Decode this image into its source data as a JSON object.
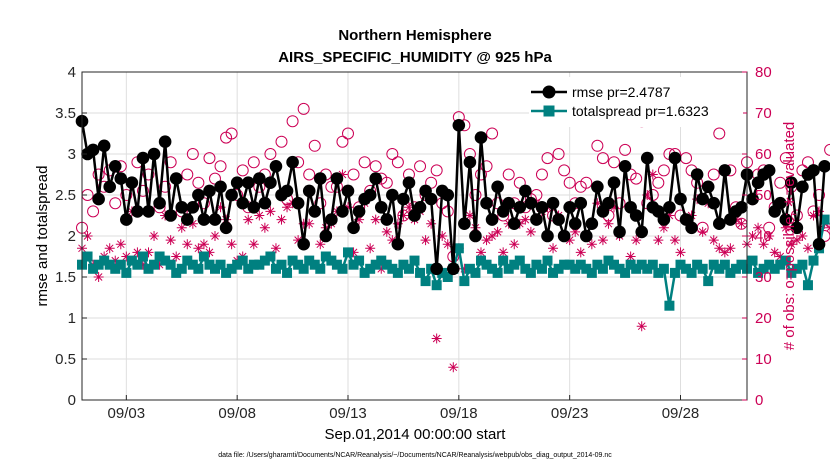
{
  "chart_data": {
    "type": "line",
    "title": "Northern Hemisphere",
    "subtitle": "AIRS_SPECIFIC_HUMIDITY @ 925 hPa",
    "xlabel": "Sep.01,2014 00:00:00 start",
    "ylabel": "rmse and totalspread",
    "y2label": "# of obs: o=possible; ∗=evaluated",
    "footnote": "data file: /Users/gharamti/Documents/NCAR/Reanalysis/~/Documents/NCAR/Reanalysis/webpub/obs_diag_output_2014-09.nc",
    "xlim": [
      1,
      31
    ],
    "ylim": [
      0,
      4
    ],
    "y2lim": [
      0,
      80
    ],
    "x_ticks": [
      3,
      8,
      13,
      18,
      23,
      28
    ],
    "x_tick_labels": [
      "09/03",
      "09/08",
      "09/13",
      "09/18",
      "09/23",
      "09/28"
    ],
    "y_ticks": [
      "0",
      "0.5",
      "1",
      "1.5",
      "2",
      "2.5",
      "3",
      "3.5",
      "4"
    ],
    "y2_ticks": [
      "0",
      "10",
      "20",
      "30",
      "40",
      "50",
      "60",
      "70",
      "80"
    ],
    "grid": true,
    "legend_position": "top-right",
    "legend": [
      {
        "name": "rmse pr=2.4787",
        "color": "#000000",
        "marker": "circle"
      },
      {
        "name": "totalspread pr=1.6323",
        "color": "#008080",
        "marker": "square"
      }
    ],
    "colors": {
      "rmse": "#000000",
      "spread": "#008080",
      "obs": "#cc0055"
    },
    "x_start": 1.0,
    "x_step": 0.25,
    "series": [
      {
        "name": "rmse pr=2.4787",
        "axis": "left",
        "values": [
          3.4,
          3.0,
          3.05,
          2.45,
          3.1,
          2.6,
          2.85,
          2.7,
          2.2,
          2.65,
          2.3,
          2.95,
          2.3,
          3.0,
          2.4,
          3.15,
          2.25,
          2.7,
          2.35,
          2.2,
          2.35,
          2.5,
          2.2,
          2.55,
          2.2,
          2.6,
          2.1,
          2.5,
          2.65,
          2.4,
          2.65,
          2.35,
          2.7,
          2.4,
          2.65,
          2.85,
          2.5,
          2.55,
          2.9,
          2.4,
          1.9,
          2.55,
          2.3,
          2.7,
          2.0,
          2.2,
          2.7,
          2.3,
          2.55,
          2.1,
          2.3,
          2.45,
          2.5,
          2.7,
          2.35,
          2.2,
          2.5,
          1.9,
          2.45,
          2.65,
          2.25,
          2.35,
          2.55,
          2.45,
          1.6,
          2.55,
          2.5,
          1.6,
          3.35,
          2.15,
          2.9,
          2.0,
          3.2,
          2.4,
          2.2,
          2.6,
          2.3,
          2.4,
          2.15,
          2.35,
          2.55,
          2.4,
          2.2,
          2.35,
          2.0,
          2.4,
          2.2,
          2.0,
          2.35,
          2.15,
          2.4,
          2.0,
          2.15,
          2.6,
          2.3,
          2.4,
          2.65,
          2.05,
          2.85,
          2.35,
          2.25,
          2.05,
          2.95,
          2.35,
          2.3,
          2.2,
          2.35,
          2.95,
          2.45,
          2.2,
          2.1,
          2.75,
          2.45,
          2.6,
          2.4,
          2.15,
          2.8,
          2.2,
          2.3,
          2.35,
          2.75,
          2.45,
          2.65,
          2.75,
          2.8,
          2.3,
          2.4,
          2.2,
          2.65,
          2.1,
          2.6,
          2.75,
          2.8,
          1.9,
          2.85
        ]
      },
      {
        "name": "totalspread pr=1.6323",
        "axis": "left",
        "values": [
          1.65,
          1.75,
          1.6,
          1.65,
          1.7,
          1.65,
          1.6,
          1.65,
          1.55,
          1.7,
          1.65,
          1.75,
          1.6,
          1.65,
          1.75,
          1.7,
          1.65,
          1.55,
          1.6,
          1.7,
          1.65,
          1.6,
          1.75,
          1.65,
          1.6,
          1.65,
          1.55,
          1.6,
          1.65,
          1.7,
          1.6,
          1.65,
          1.65,
          1.7,
          1.75,
          1.6,
          1.65,
          1.55,
          1.7,
          1.65,
          1.6,
          1.7,
          1.65,
          1.6,
          1.75,
          1.7,
          1.65,
          1.6,
          1.8,
          1.65,
          1.7,
          1.55,
          1.6,
          1.65,
          1.7,
          1.65,
          1.6,
          1.55,
          1.65,
          1.6,
          1.7,
          1.55,
          1.45,
          1.6,
          1.4,
          1.55,
          1.5,
          1.6,
          1.85,
          1.45,
          1.6,
          1.55,
          1.7,
          1.65,
          1.6,
          1.55,
          1.7,
          1.6,
          1.65,
          1.7,
          1.6,
          1.55,
          1.65,
          1.6,
          1.7,
          1.55,
          1.6,
          1.65,
          1.65,
          1.6,
          1.65,
          1.6,
          1.55,
          1.65,
          1.6,
          1.7,
          1.65,
          1.6,
          1.55,
          1.65,
          1.6,
          1.65,
          1.6,
          1.65,
          1.55,
          1.6,
          1.15,
          1.55,
          1.65,
          1.6,
          1.55,
          1.65,
          1.6,
          1.45,
          1.65,
          1.6,
          1.65,
          1.55,
          1.6,
          1.65,
          1.6,
          1.7,
          1.55,
          1.6,
          1.65,
          1.6,
          1.65,
          1.7,
          1.55,
          1.6,
          1.65,
          1.4,
          1.7,
          1.85,
          2.2
        ]
      },
      {
        "name": "obs possible",
        "axis": "right",
        "values": [
          42,
          50,
          46,
          55,
          52,
          56,
          48,
          57,
          50,
          53,
          58,
          51,
          55,
          60,
          47,
          52,
          58,
          54,
          46,
          55,
          60,
          53,
          48,
          59,
          54,
          57,
          64,
          65,
          50,
          56,
          47,
          58,
          52,
          55,
          60,
          57,
          63,
          49,
          68,
          58,
          71,
          55,
          62,
          48,
          55,
          52,
          52,
          63,
          65,
          55,
          47,
          58,
          51,
          57,
          54,
          53,
          60,
          58,
          45,
          55,
          47,
          57,
          50,
          53,
          56,
          48,
          46,
          35,
          69,
          67,
          60,
          50,
          55,
          57,
          65,
          48,
          45,
          55,
          48,
          53,
          47,
          49,
          50,
          55,
          59,
          45,
          60,
          56,
          53,
          48,
          52,
          53,
          43,
          62,
          59,
          45,
          58,
          48,
          61,
          55,
          54,
          68,
          48,
          50,
          53,
          56,
          60,
          60,
          45,
          59,
          56,
          53,
          42,
          52,
          55,
          65,
          76,
          56,
          47,
          43,
          58,
          49,
          55,
          56,
          42,
          47,
          53,
          59,
          52,
          45,
          56,
          58,
          46,
          50,
          40,
          61,
          57
        ]
      },
      {
        "name": "obs evaluated",
        "axis": "right",
        "values": [
          37,
          40,
          33,
          30,
          35,
          37,
          34,
          38,
          35,
          46,
          36,
          33,
          36,
          40,
          33,
          45,
          39,
          35,
          42,
          38,
          43,
          37,
          38,
          36,
          40,
          47,
          44,
          38,
          34,
          35,
          44,
          38,
          45,
          42,
          46,
          37,
          44,
          47,
          48,
          39,
          43,
          43,
          46,
          38,
          42,
          43,
          46,
          55,
          47,
          36,
          44,
          48,
          37,
          44,
          32,
          41,
          39,
          43,
          45,
          47,
          44,
          46,
          39,
          43,
          15,
          40,
          38,
          8,
          37,
          32,
          45,
          42,
          36,
          39,
          40,
          41,
          36,
          43,
          38,
          43,
          44,
          41,
          48,
          46,
          47,
          37,
          45,
          40,
          39,
          41,
          36,
          40,
          38,
          48,
          39,
          43,
          47,
          40,
          57,
          35,
          39,
          18,
          50,
          55,
          39,
          42,
          45,
          39,
          36,
          44,
          45,
          49,
          41,
          48,
          39,
          37,
          36,
          37,
          44,
          43,
          38,
          40,
          42,
          38,
          40,
          36,
          35,
          42,
          38,
          39,
          40,
          37,
          45,
          46,
          43,
          42,
          0
        ]
      }
    ]
  }
}
